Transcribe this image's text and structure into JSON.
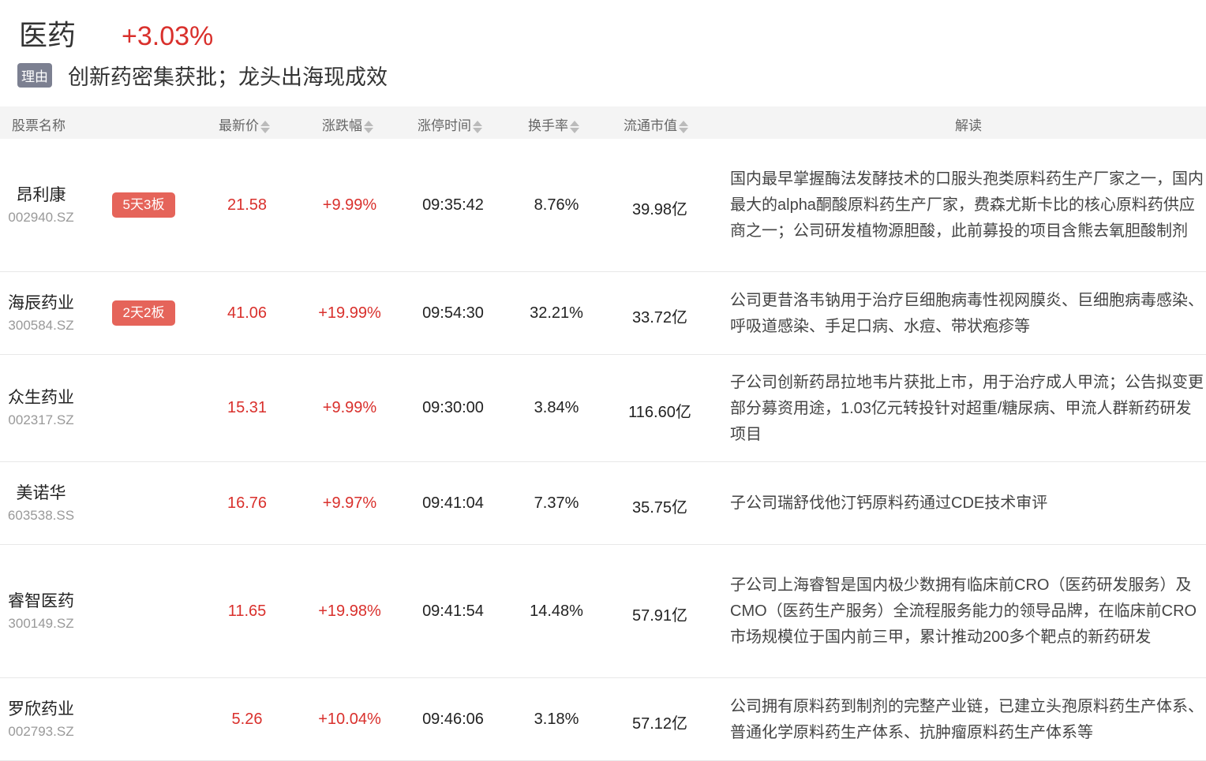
{
  "header": {
    "sector": "医药",
    "change": "+3.03%",
    "reason_tag": "理由",
    "reason": "创新药密集获批；龙头出海现成效"
  },
  "columns": [
    "股票名称",
    "最新价",
    "涨跌幅",
    "涨停时间",
    "换手率",
    "流通市值",
    "解读"
  ],
  "colors": {
    "up": "#d9302c",
    "badge": "#e5645a",
    "tag": "#7c8091"
  },
  "rows": [
    {
      "name": "昂利康",
      "code": "002940.SZ",
      "badge": "5天3板",
      "price": "21.58",
      "change": "+9.99%",
      "time": "09:35:42",
      "turnover": "8.76%",
      "mcap": "39.98亿",
      "desc": "国内最早掌握酶法发酵技术的口服头孢类原料药生产厂家之一，国内最大的alpha酮酸原料药生产厂家，费森尤斯卡比的核心原料药供应商之一；公司研发植物源胆酸，此前募投的项目含熊去氧胆酸制剂"
    },
    {
      "name": "海辰药业",
      "code": "300584.SZ",
      "badge": "2天2板",
      "price": "41.06",
      "change": "+19.99%",
      "time": "09:54:30",
      "turnover": "32.21%",
      "mcap": "33.72亿",
      "desc": "公司更昔洛韦钠用于治疗巨细胞病毒性视网膜炎、巨细胞病毒感染、呼吸道感染、手足口病、水痘、带状疱疹等"
    },
    {
      "name": "众生药业",
      "code": "002317.SZ",
      "price": "15.31",
      "change": "+9.99%",
      "time": "09:30:00",
      "turnover": "3.84%",
      "mcap": "116.60亿",
      "desc": "子公司创新药昂拉地韦片获批上市，用于治疗成人甲流；公告拟变更部分募资用途，1.03亿元转投针对超重/糖尿病、甲流人群新药研发项目"
    },
    {
      "name": "美诺华",
      "code": "603538.SS",
      "price": "16.76",
      "change": "+9.97%",
      "time": "09:41:04",
      "turnover": "7.37%",
      "mcap": "35.75亿",
      "desc": "子公司瑞舒伐他汀钙原料药通过CDE技术审评"
    },
    {
      "name": "睿智医药",
      "code": "300149.SZ",
      "price": "11.65",
      "change": "+19.98%",
      "time": "09:41:54",
      "turnover": "14.48%",
      "mcap": "57.91亿",
      "desc": "子公司上海睿智是国内极少数拥有临床前CRO（医药研发服务）及CMO（医药生产服务）全流程服务能力的领导品牌，在临床前CRO市场规模位于国内前三甲，累计推动200多个靶点的新药研发"
    },
    {
      "name": "罗欣药业",
      "code": "002793.SZ",
      "price": "5.26",
      "change": "+10.04%",
      "time": "09:46:06",
      "turnover": "3.18%",
      "mcap": "57.12亿",
      "desc": "公司拥有原料药到制剂的完整产业链，已建立头孢原料药生产体系、普通化学原料药生产体系、抗肿瘤原料药生产体系等"
    }
  ]
}
